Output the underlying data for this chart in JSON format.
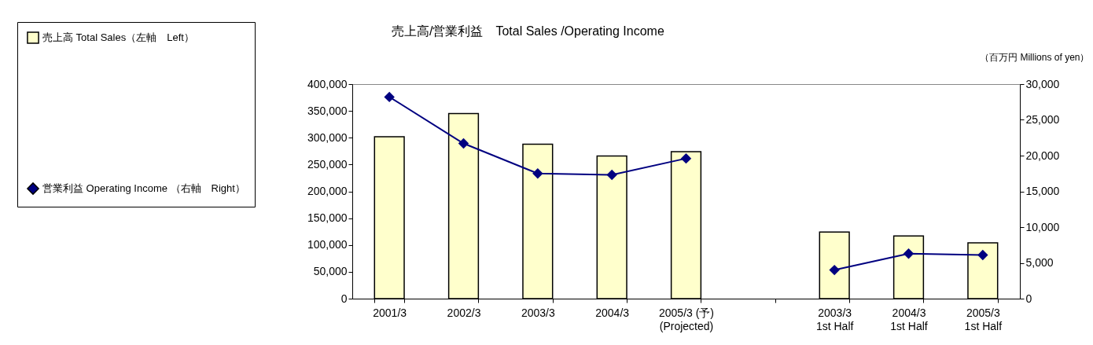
{
  "chart_data": {
    "type": "bar",
    "title": "売上高/営業利益　Total Sales /Operating Income",
    "y2label": "（百万円 Millions of yen）",
    "categories": [
      "2001/3",
      "2002/3",
      "2003/3",
      "2004/3",
      "2005/3 (予)\n(Projected)",
      null,
      "2003/3\n1st Half",
      "2004/3\n1st Half",
      "2005/3\n1st Half"
    ],
    "series": [
      {
        "name": "売上高 Total Sales（左軸　Left）",
        "color": "#ffffcc",
        "values": [
          302000,
          345000,
          288000,
          266000,
          274000,
          null,
          124000,
          117000,
          104000
        ]
      },
      {
        "name": "営業利益 Operating Income （右軸　Right）",
        "type": "line",
        "axis": "y2",
        "color": "#000080",
        "values": [
          28200,
          21700,
          17500,
          17300,
          19600,
          null,
          4000,
          6300,
          6100
        ]
      }
    ],
    "ylim": [
      0,
      400000
    ],
    "yticks": [
      0,
      {
        "value": 50000,
        "label": "50,000"
      },
      {
        "value": 100000,
        "label": "100,000"
      },
      {
        "value": 150000,
        "label": "150,000"
      },
      {
        "value": 200000,
        "label": "200,000"
      },
      {
        "value": 250000,
        "label": "250,000"
      },
      {
        "value": 300000,
        "label": "300,000"
      },
      {
        "value": 350000,
        "label": "350,000"
      },
      {
        "value": 400000,
        "label": "400,000"
      }
    ],
    "y2lim": [
      0,
      30000
    ],
    "y2ticks": [
      0,
      {
        "value": 5000,
        "label": "5,000"
      },
      {
        "value": 10000,
        "label": "10,000"
      },
      {
        "value": 15000,
        "label": "15,000"
      },
      {
        "value": 20000,
        "label": "20,000"
      },
      {
        "value": 25000,
        "label": "25,000"
      },
      {
        "value": 30000,
        "label": "30,000"
      }
    ],
    "marker": "diamond",
    "legend": "left",
    "grid": false
  }
}
